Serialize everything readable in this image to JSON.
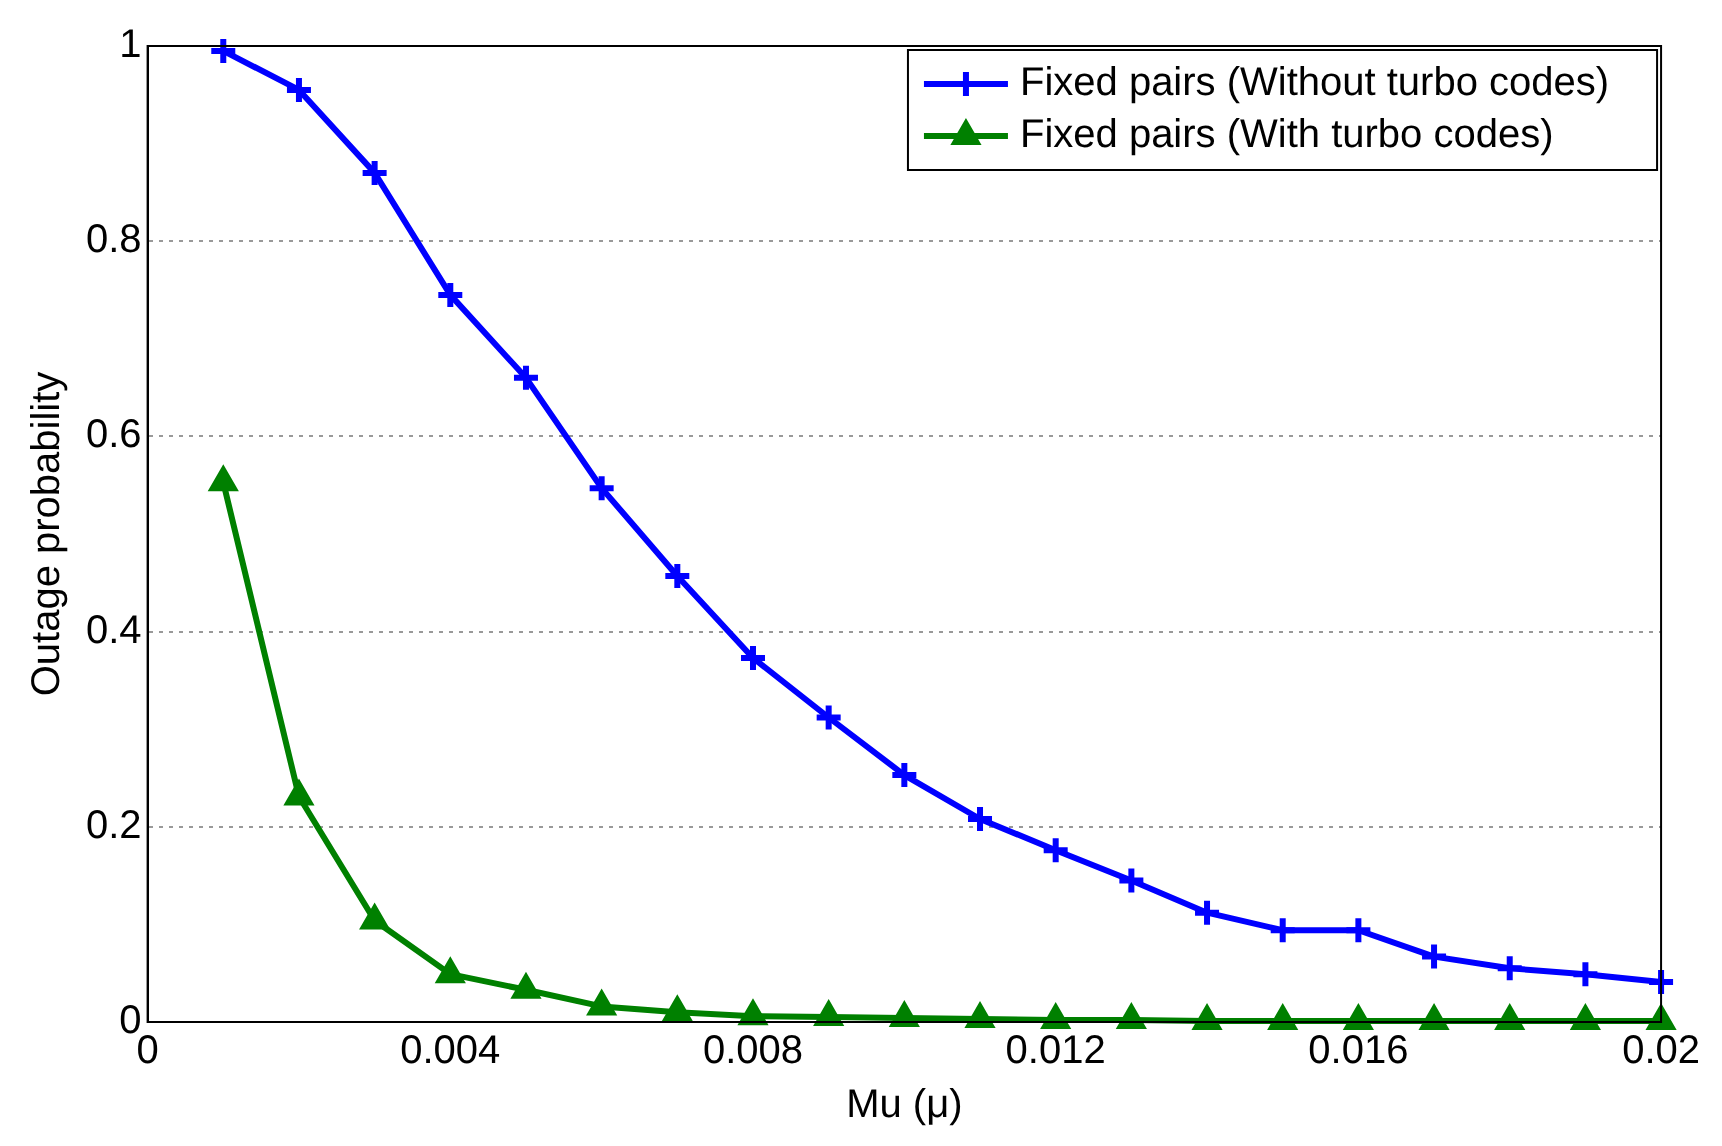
{
  "chart_data": {
    "type": "line",
    "xlabel": "Mu (μ)",
    "ylabel": "Outage probability",
    "x": [
      0.001,
      0.002,
      0.003,
      0.004,
      0.005,
      0.006,
      0.007,
      0.008,
      0.009,
      0.01,
      0.011,
      0.012,
      0.013,
      0.014,
      0.015,
      0.016,
      0.017,
      0.018,
      0.019,
      0.02
    ],
    "series": [
      {
        "name": "Fixed pairs (Without turbo codes)",
        "color": "#0000ff",
        "marker": "cross",
        "values": [
          0.995,
          0.955,
          0.87,
          0.745,
          0.66,
          0.547,
          0.457,
          0.373,
          0.312,
          0.253,
          0.208,
          0.176,
          0.145,
          0.112,
          0.094,
          0.094,
          0.067,
          0.055,
          0.049,
          0.041
        ]
      },
      {
        "name": "Fixed pairs (With turbo codes)",
        "color": "#008000",
        "marker": "triangle",
        "values": [
          0.553,
          0.231,
          0.104,
          0.049,
          0.033,
          0.016,
          0.01,
          0.006,
          0.005,
          0.004,
          0.003,
          0.002,
          0.002,
          0.001,
          0.001,
          0.001,
          0.001,
          0.001,
          0.001,
          0.001
        ]
      }
    ],
    "xlim": [
      0,
      0.02
    ],
    "xticks": [
      0,
      0.004,
      0.008,
      0.012,
      0.016,
      0.02
    ],
    "ylim": [
      0,
      1
    ],
    "yticks": [
      0,
      0.2,
      0.4,
      0.6,
      0.8,
      1
    ],
    "grid": "y",
    "legend": "top right",
    "line_style": "solid"
  }
}
